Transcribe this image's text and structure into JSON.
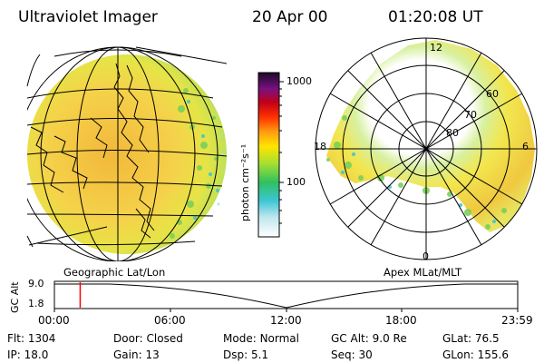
{
  "header": {
    "title": "Ultraviolet Imager",
    "date": "20 Apr 00",
    "time": "01:20:08 UT"
  },
  "colorbar": {
    "unit_label": "photon cm⁻²s⁻¹",
    "ticks": [
      "1000",
      "100"
    ]
  },
  "left_panel": {
    "caption": "Geographic Lat/Lon"
  },
  "right_panel": {
    "caption": "Apex MLat/MLT",
    "lat_labels": [
      "80",
      "70",
      "60"
    ],
    "mlt_labels": [
      "12",
      "18",
      "6",
      "0"
    ]
  },
  "timeline": {
    "ylabel": "GC Alt",
    "yticks": [
      "9.0",
      "1.8"
    ],
    "xticks": [
      "00:00",
      "06:00",
      "12:00",
      "18:00",
      "23:59"
    ],
    "cursor_time_hours": 1.335
  },
  "info_rows": [
    [
      {
        "label": "Flt:",
        "value": "1304"
      },
      {
        "label": "Door:",
        "value": "Closed"
      },
      {
        "label": "Mode:",
        "value": "Normal"
      },
      {
        "label": "GC Alt:",
        "value": "9.0 Re"
      },
      {
        "label": "GLat:",
        "value": "76.5"
      }
    ],
    [
      {
        "label": "IP:",
        "value": "18.0"
      },
      {
        "label": "Gain:",
        "value": "13"
      },
      {
        "label": "Dsp:",
        "value": "5.1"
      },
      {
        "label": "Seq:",
        "value": "30"
      },
      {
        "label": "GLon:",
        "value": "155.6"
      }
    ]
  ],
  "colors": {
    "cursor": "#ff0000"
  }
}
